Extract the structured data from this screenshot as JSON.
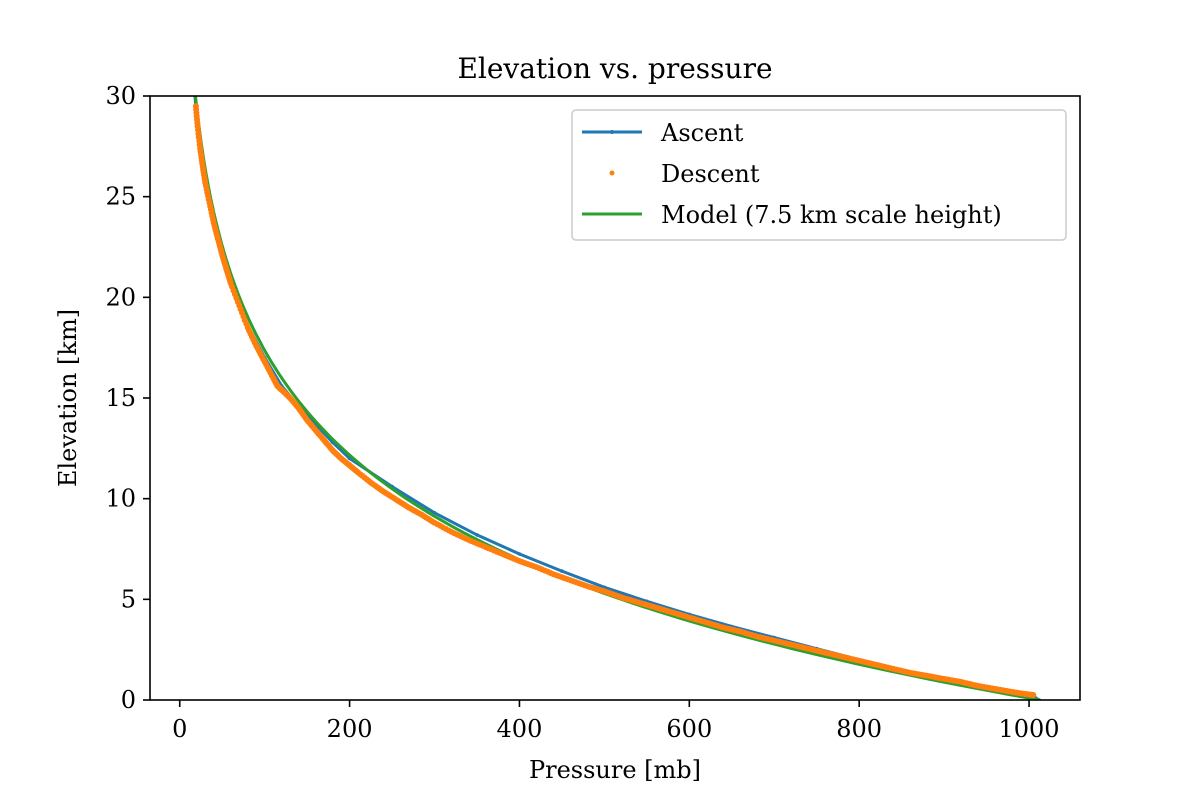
{
  "chart_data": {
    "type": "line",
    "title": "Elevation vs. pressure",
    "xlabel": "Pressure [mb]",
    "ylabel": "Elevation [km]",
    "xlim": [
      -35,
      1060
    ],
    "ylim": [
      0,
      30
    ],
    "xticks": [
      0,
      200,
      400,
      600,
      800,
      1000
    ],
    "yticks": [
      0,
      5,
      10,
      15,
      20,
      25,
      30
    ],
    "grid": false,
    "legend_position": "upper right",
    "series": [
      {
        "name": "Ascent",
        "style": "line-with-small-markers",
        "color": "#1f77b4",
        "x": [
          1012,
          1008,
          1000,
          950,
          900,
          850,
          800,
          750,
          700,
          650,
          600,
          550,
          500,
          450,
          400,
          350,
          300,
          250,
          200,
          180,
          160,
          140,
          120,
          100,
          80,
          60,
          50,
          40,
          30,
          25,
          20,
          18
        ],
        "y": [
          0.0,
          0.1,
          0.2,
          0.6,
          1.05,
          1.5,
          2.0,
          2.55,
          3.1,
          3.65,
          4.25,
          4.9,
          5.6,
          6.4,
          7.25,
          8.2,
          9.3,
          10.6,
          12.0,
          12.8,
          13.7,
          14.6,
          15.6,
          17.0,
          18.6,
          20.6,
          22.0,
          23.6,
          25.6,
          26.8,
          28.8,
          30.0
        ]
      },
      {
        "name": "Descent",
        "style": "dots",
        "color": "#ff7f0e",
        "x": [
          1005,
          995,
          980,
          960,
          940,
          920,
          900,
          880,
          860,
          840,
          820,
          800,
          780,
          760,
          740,
          720,
          700,
          680,
          660,
          640,
          620,
          600,
          580,
          560,
          540,
          520,
          500,
          480,
          460,
          440,
          420,
          400,
          380,
          360,
          340,
          320,
          300,
          285,
          270,
          255,
          240,
          225,
          210,
          200,
          190,
          180,
          170,
          160,
          150,
          140,
          130,
          120,
          115,
          110,
          100,
          90,
          80,
          70,
          60,
          55,
          50,
          45,
          40,
          35,
          30,
          27,
          24,
          21,
          19
        ],
        "y": [
          0.25,
          0.3,
          0.4,
          0.55,
          0.7,
          0.9,
          1.05,
          1.2,
          1.35,
          1.55,
          1.75,
          1.95,
          2.15,
          2.35,
          2.55,
          2.75,
          2.95,
          3.15,
          3.4,
          3.6,
          3.85,
          4.1,
          4.35,
          4.6,
          4.85,
          5.1,
          5.4,
          5.65,
          5.95,
          6.25,
          6.6,
          6.9,
          7.25,
          7.6,
          7.95,
          8.35,
          8.8,
          9.2,
          9.55,
          9.95,
          10.35,
          10.8,
          11.3,
          11.65,
          12.0,
          12.4,
          12.9,
          13.4,
          13.9,
          14.5,
          15.0,
          15.4,
          15.6,
          16.0,
          16.8,
          17.6,
          18.5,
          19.6,
          20.7,
          21.4,
          22.1,
          22.9,
          23.7,
          24.7,
          25.7,
          26.5,
          27.4,
          28.5,
          29.5
        ]
      },
      {
        "name": "Model (7.5 km scale height)",
        "style": "line",
        "color": "#2ca02c",
        "model": {
          "p0": 1013,
          "scale_height_km": 7.5
        }
      }
    ]
  }
}
